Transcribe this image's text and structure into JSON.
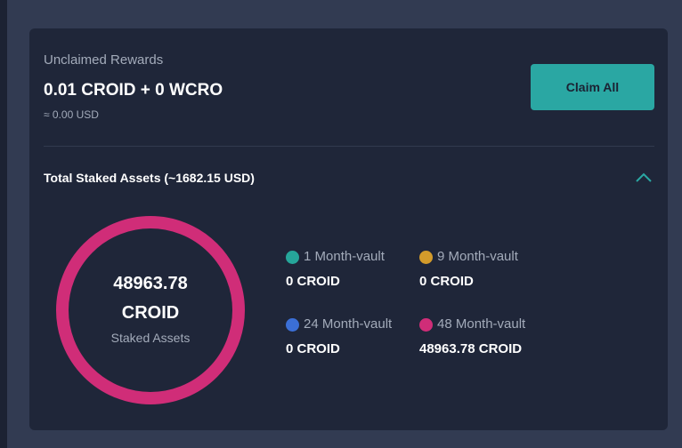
{
  "rewards": {
    "label": "Unclaimed Rewards",
    "amount": "0.01 CROID + 0 WCRO",
    "usd": "≈ 0.00 USD"
  },
  "button": "Claim All",
  "staked": {
    "title": "Total Staked Assets (~1682.15 USD)",
    "total": "48963.78",
    "unit": "CROID",
    "caption": "Staked Assets",
    "vaults": [
      {
        "name": "1 Month-vault",
        "amount": "0 CROID"
      },
      {
        "name": "9 Month-vault",
        "amount": "0 CROID"
      },
      {
        "name": "24 Month-vault",
        "amount": "0 CROID"
      },
      {
        "name": "48 Month-vault",
        "amount": "48963.78 CROID"
      }
    ]
  }
}
